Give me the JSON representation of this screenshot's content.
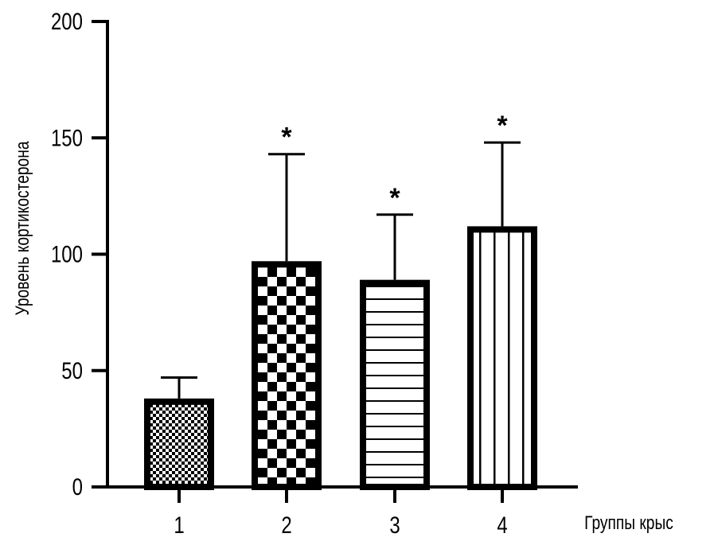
{
  "chart_data": {
    "type": "bar",
    "title": "",
    "xlabel": "Группы крыс",
    "ylabel": "Уровень кортикостерона",
    "ylim": [
      0,
      200
    ],
    "yticks": [
      "0",
      "50",
      "100",
      "150",
      "200"
    ],
    "categories": [
      "1",
      "2",
      "3",
      "4"
    ],
    "values": [
      38,
      97,
      89,
      112
    ],
    "error_upper": [
      47,
      143,
      117,
      148
    ],
    "annotations": [
      "",
      "*",
      "*",
      "*"
    ],
    "patterns": [
      "fine-checker",
      "coarse-checker",
      "horizontal-lines",
      "vertical-lines"
    ],
    "grid": false,
    "colors": {
      "bar_outline": "#000000",
      "fill": "#ffffff"
    }
  }
}
